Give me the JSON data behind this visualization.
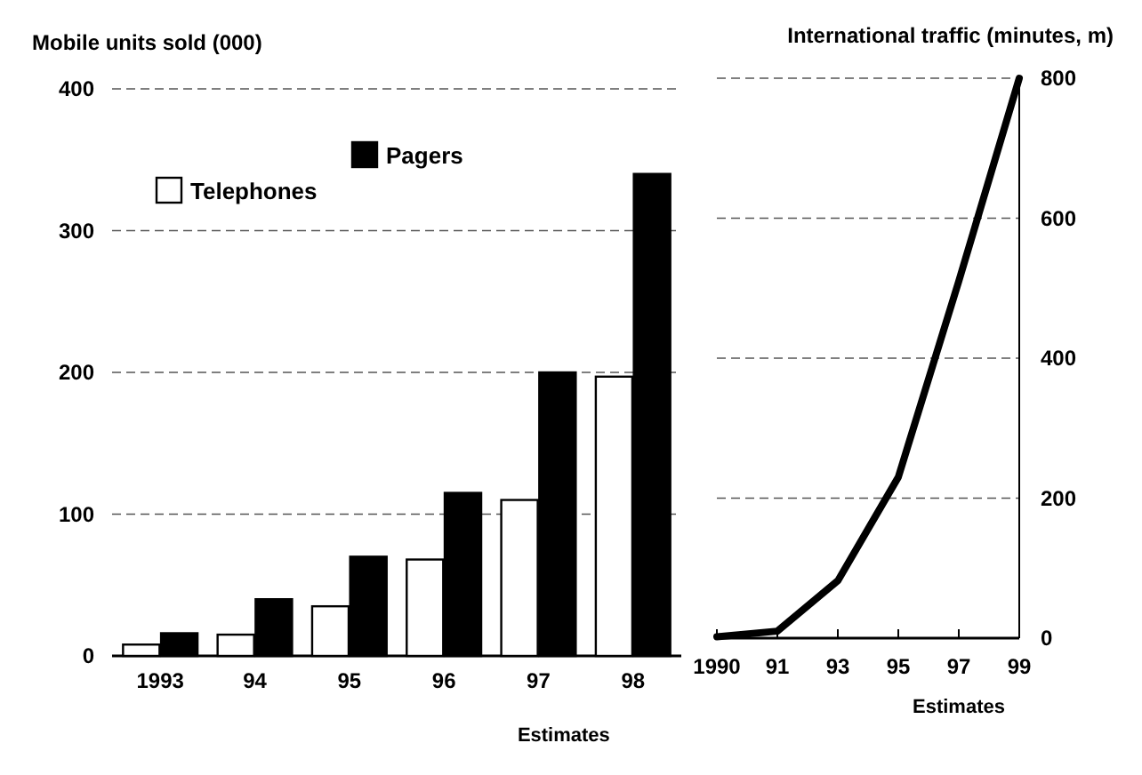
{
  "chart_data": [
    {
      "type": "bar",
      "ylabel": "Mobile units sold (000)",
      "categories": [
        "1993",
        "94",
        "95",
        "96",
        "97",
        "98"
      ],
      "series": [
        {
          "name": "Telephones",
          "color": "#ffffff",
          "values": [
            8,
            15,
            35,
            68,
            110,
            197
          ]
        },
        {
          "name": "Pagers",
          "color": "#000000",
          "values": [
            16,
            40,
            70,
            115,
            200,
            340
          ]
        }
      ],
      "ylim": [
        0,
        400
      ],
      "yticks": [
        0,
        100,
        200,
        300,
        400
      ],
      "grid": "y",
      "legend": "top left",
      "annotations": [
        "Estimates"
      ]
    },
    {
      "type": "line",
      "y2label": "International traffic (minutes, m)",
      "categories": [
        "1990",
        "91",
        "93",
        "95",
        "97",
        "99"
      ],
      "series": [
        {
          "color": "#000000",
          "values": [
            2,
            10,
            82,
            230,
            510,
            800
          ]
        }
      ],
      "ylim": [
        0,
        800
      ],
      "yticks": [
        0,
        200,
        400,
        600,
        800
      ],
      "grid": "y",
      "line_style": "solid",
      "marker": "none",
      "annotations": [
        "Estimates"
      ]
    }
  ]
}
